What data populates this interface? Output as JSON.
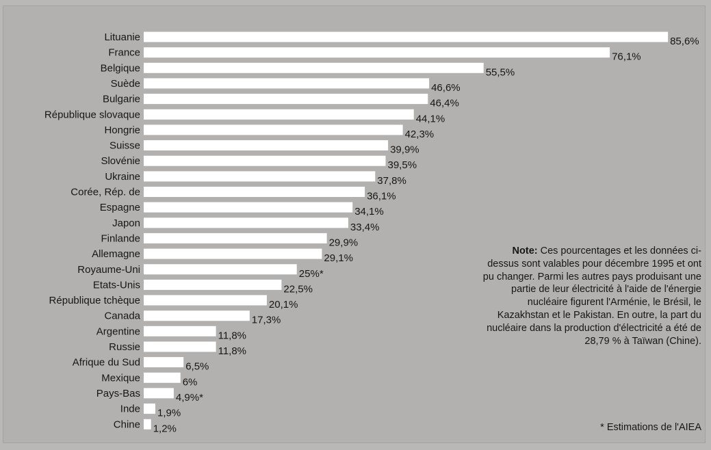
{
  "chart_data": {
    "type": "bar",
    "orientation": "horizontal",
    "title": "",
    "xlabel": "",
    "ylabel": "",
    "categories": [
      "Lituanie",
      "France",
      "Belgique",
      "Suède",
      "Bulgarie",
      "République slovaque",
      "Hongrie",
      "Suisse",
      "Slovénie",
      "Ukraine",
      "Corée, Rép. de",
      "Espagne",
      "Japon",
      "Finlande",
      "Allemagne",
      "Royaume-Uni",
      "Etats-Unis",
      "République tchèque",
      "Canada",
      "Argentine",
      "Russie",
      "Afrique du Sud",
      "Mexique",
      "Pays-Bas",
      "Inde",
      "Chine"
    ],
    "values": [
      85.6,
      76.1,
      55.5,
      46.6,
      46.4,
      44.1,
      42.3,
      39.9,
      39.5,
      37.8,
      36.1,
      34.1,
      33.4,
      29.9,
      29.1,
      25,
      22.5,
      20.1,
      17.3,
      11.8,
      11.8,
      6.5,
      6,
      4.9,
      1.9,
      1.2
    ],
    "value_labels": [
      "85,6%",
      "76,1%",
      "55,5%",
      "46,6%",
      "46,4%",
      "44,1%",
      "42,3%",
      "39,9%",
      "39,5%",
      "37,8%",
      "36,1%",
      "34,1%",
      "33,4%",
      "29,9%",
      "29,1%",
      "25%*",
      "22,5%",
      "20,1%",
      "17,3%",
      "11,8%",
      "11,8%",
      "6,5%",
      "6%",
      "4,9%*",
      "1,9%",
      "1,2%"
    ],
    "xlim": [
      0,
      100
    ],
    "grid": false,
    "bar_color": "#ffffff",
    "annotations": {
      "note_label": "Note:",
      "note_text": " Ces pourcentages et les données ci-dessus sont valables pour décembre 1995 et ont pu changer. Parmi les autres pays produisant une partie de leur électricité à l'aide de l'énergie nucléaire figurent l'Arménie, le Brésil, le Kazakhstan et le Pakistan. En outre, la part du nucléaire dans la production d'électricité a été de 28,79 % à Taïwan (Chine).",
      "footnote": "* Estimations de l'AIEA"
    }
  }
}
